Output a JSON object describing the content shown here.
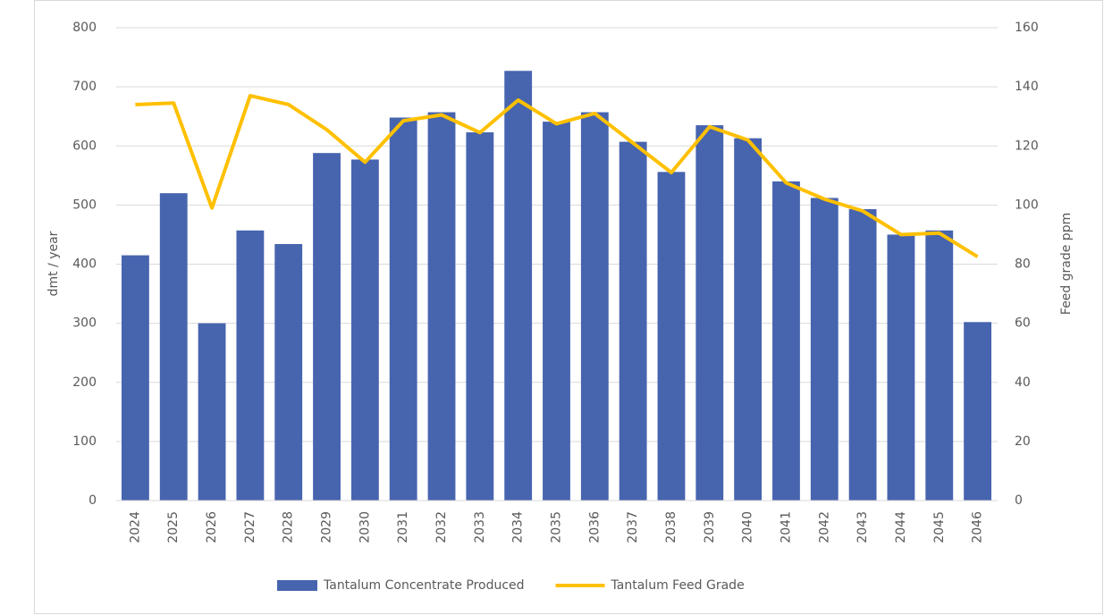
{
  "chart_data": {
    "type": "bar_line",
    "categories": [
      "2024",
      "2025",
      "2026",
      "2027",
      "2028",
      "2029",
      "2030",
      "2031",
      "2032",
      "2033",
      "2034",
      "2035",
      "2036",
      "2037",
      "2038",
      "2039",
      "2040",
      "2041",
      "2042",
      "2043",
      "2044",
      "2045",
      "2046"
    ],
    "y_label": "dmt / year",
    "y2_label": "Feed grade ppm",
    "series": [
      {
        "name": "Tantalum Concentrate Produced",
        "type": "bar",
        "color": "#4764ae",
        "values": [
          415,
          520,
          300,
          457,
          434,
          588,
          577,
          648,
          657,
          623,
          727,
          641,
          657,
          607,
          556,
          635,
          613,
          540,
          512,
          493,
          450,
          457,
          302
        ]
      },
      {
        "name": "Tantalum Feed Grade",
        "type": "line",
        "axis": "y2",
        "color": "#ffc000",
        "values": [
          134,
          134.5,
          99,
          137,
          134,
          125.5,
          114.5,
          128.5,
          130.5,
          124.5,
          135.5,
          127.5,
          131,
          121,
          111,
          126.5,
          122,
          107.5,
          102,
          98,
          90,
          90.5,
          82.5
        ]
      }
    ],
    "ylim": [
      0,
      800
    ],
    "yticks": [
      0,
      100,
      200,
      300,
      400,
      500,
      600,
      700,
      800
    ],
    "y2lim": [
      0,
      160
    ],
    "y2ticks": [
      0,
      20,
      40,
      60,
      80,
      100,
      120,
      140,
      160
    ],
    "grid": true,
    "legend": "bottom"
  }
}
